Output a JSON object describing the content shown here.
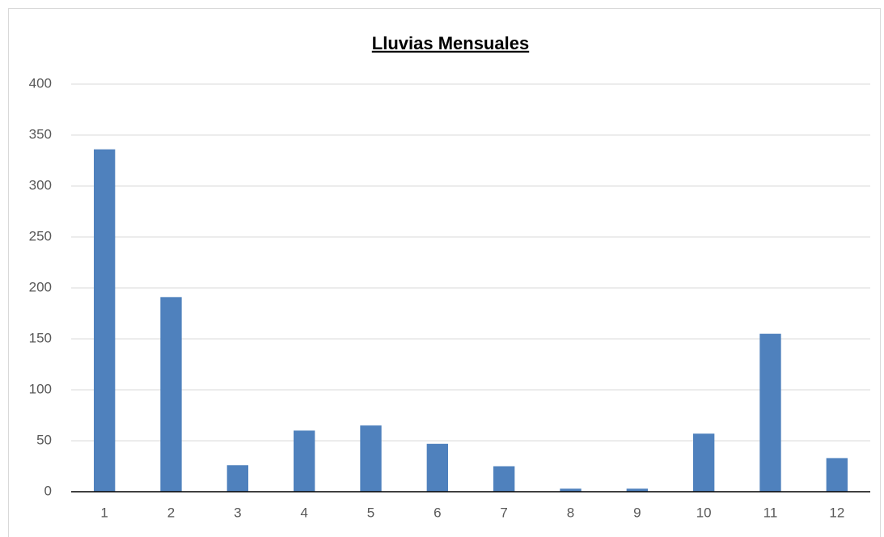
{
  "chart_data": {
    "type": "bar",
    "title": "Lluvias Mensuales",
    "categories": [
      "1",
      "2",
      "3",
      "4",
      "5",
      "6",
      "7",
      "8",
      "9",
      "10",
      "11",
      "12"
    ],
    "values": [
      336,
      191,
      26,
      60,
      65,
      47,
      25,
      3,
      3,
      57,
      155,
      33
    ],
    "color": "#4f81bd",
    "ylim": [
      0,
      400
    ],
    "yticks": [
      0,
      50,
      100,
      150,
      200,
      250,
      300,
      350,
      400
    ],
    "grid": true
  }
}
